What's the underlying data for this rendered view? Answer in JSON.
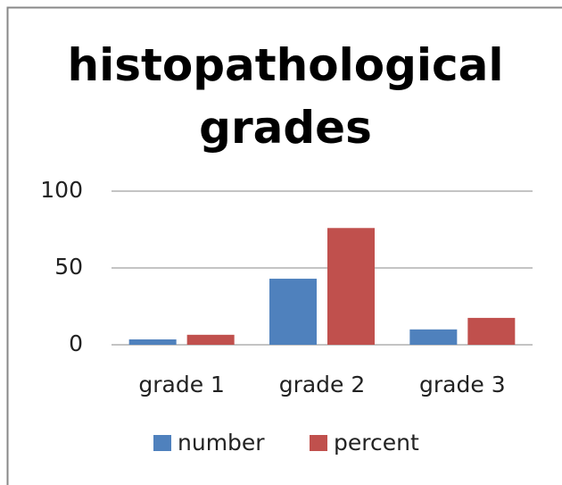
{
  "chart_data": {
    "type": "bar",
    "title": "histopathological grades",
    "categories": [
      "grade 1",
      "grade 2",
      "grade 3"
    ],
    "series": [
      {
        "name": "number",
        "color": "#4f81bd",
        "values": [
          3.5,
          43,
          10
        ]
      },
      {
        "name": "percent",
        "color": "#c0504d",
        "values": [
          6.5,
          76,
          17.5
        ]
      }
    ],
    "ylim": [
      0,
      100
    ],
    "yticks": [
      0,
      50,
      100
    ],
    "grid": true,
    "legend": "bottom"
  }
}
